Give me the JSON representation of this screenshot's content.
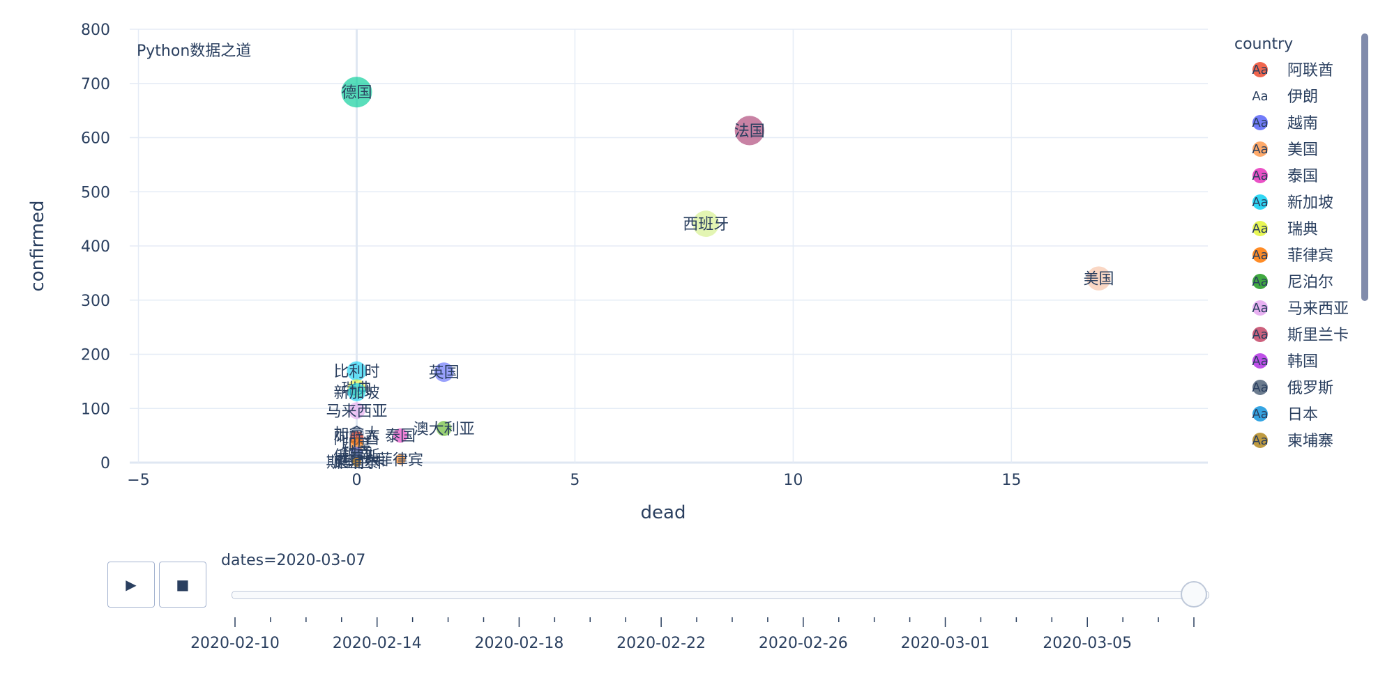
{
  "chart_data": {
    "type": "scatter",
    "annotation": "Python数据之道",
    "xlabel": "dead",
    "ylabel": "confirmed",
    "xlim": [
      -5.2,
      19.5
    ],
    "ylim": [
      0,
      800
    ],
    "xticks": [
      -5,
      0,
      5,
      10,
      15
    ],
    "xtick_labels": [
      "−5",
      "0",
      "5",
      "10",
      "15"
    ],
    "yticks": [
      0,
      100,
      200,
      300,
      400,
      500,
      600,
      700,
      800
    ],
    "grid": true,
    "legend_title": "country",
    "legend_placement": "right",
    "legend_items": [
      {
        "name": "阿联酋",
        "color": "#EF553B"
      },
      {
        "name": "伊朗",
        "color": "#ffffff"
      },
      {
        "name": "越南",
        "color": "#636efa"
      },
      {
        "name": "美国",
        "color": "#FFA15A"
      },
      {
        "name": "泰国",
        "color": "#e83fc0"
      },
      {
        "name": "新加坡",
        "color": "#19d3f3"
      },
      {
        "name": "瑞典",
        "color": "#e5f542"
      },
      {
        "name": "菲律宾",
        "color": "#FF7F0E"
      },
      {
        "name": "尼泊尔",
        "color": "#2ca02c"
      },
      {
        "name": "马来西亚",
        "color": "#e6a9f0"
      },
      {
        "name": "斯里兰卡",
        "color": "#c8506f"
      },
      {
        "name": "韩国",
        "color": "#b83de6"
      },
      {
        "name": "俄罗斯",
        "color": "#5b6d82"
      },
      {
        "name": "日本",
        "color": "#1f9be0"
      },
      {
        "name": "柬埔寨",
        "color": "#b8902c"
      }
    ],
    "points": [
      {
        "name": "德国",
        "x": 0,
        "y": 684,
        "color": "#00cc96"
      },
      {
        "name": "法国",
        "x": 9,
        "y": 613,
        "color": "#ab3f73"
      },
      {
        "name": "西班牙",
        "x": 8,
        "y": 441,
        "color": "#d4f08a"
      },
      {
        "name": "美国",
        "x": 17,
        "y": 340,
        "color": "#f7c2a5"
      },
      {
        "name": "英国",
        "x": 2,
        "y": 167,
        "color": "#636efa"
      },
      {
        "name": "比利时",
        "x": 0,
        "y": 169,
        "color": "#19d3f3"
      },
      {
        "name": "瑞典",
        "x": 0,
        "y": 137,
        "color": "#e5f542"
      },
      {
        "name": "新加坡",
        "x": 0,
        "y": 130,
        "color": "#19d3f3"
      },
      {
        "name": "马来西亚",
        "x": 0,
        "y": 96,
        "color": "#e6a9f0"
      },
      {
        "name": "澳大利亚",
        "x": 2,
        "y": 63,
        "color": "#62b92a"
      },
      {
        "name": "泰国",
        "x": 1,
        "y": 50,
        "color": "#e83fc0"
      },
      {
        "name": "加拿大",
        "x": 0,
        "y": 54,
        "color": "#8d9bb5"
      },
      {
        "name": "阿联酋",
        "x": 0,
        "y": 45,
        "color": "#EF553B"
      },
      {
        "name": "印度",
        "x": 0,
        "y": 34,
        "color": "#FF7F0E"
      },
      {
        "name": "越南",
        "x": 0,
        "y": 18,
        "color": "#636efa"
      },
      {
        "name": "俄罗斯",
        "x": 0,
        "y": 13,
        "color": "#5b6d82"
      },
      {
        "name": "菲律宾",
        "x": 1,
        "y": 6,
        "color": "#FF7F0E"
      },
      {
        "name": "尼泊尔",
        "x": 0,
        "y": 1,
        "color": "#2ca02c"
      },
      {
        "name": "斯里兰卡",
        "x": 0,
        "y": 1,
        "color": "#c8506f"
      },
      {
        "name": "柬埔寨",
        "x": 0,
        "y": 1,
        "color": "#b8902c"
      }
    ]
  },
  "animation": {
    "slider_label": "dates=2020-03-07",
    "play_label": "▶",
    "stop_label": "■",
    "slider_value_fraction": 1.0,
    "date_ticks": [
      "2020-02-10",
      "2020-02-14",
      "2020-02-18",
      "2020-02-22",
      "2020-02-26",
      "2020-03-01",
      "2020-03-05"
    ]
  }
}
